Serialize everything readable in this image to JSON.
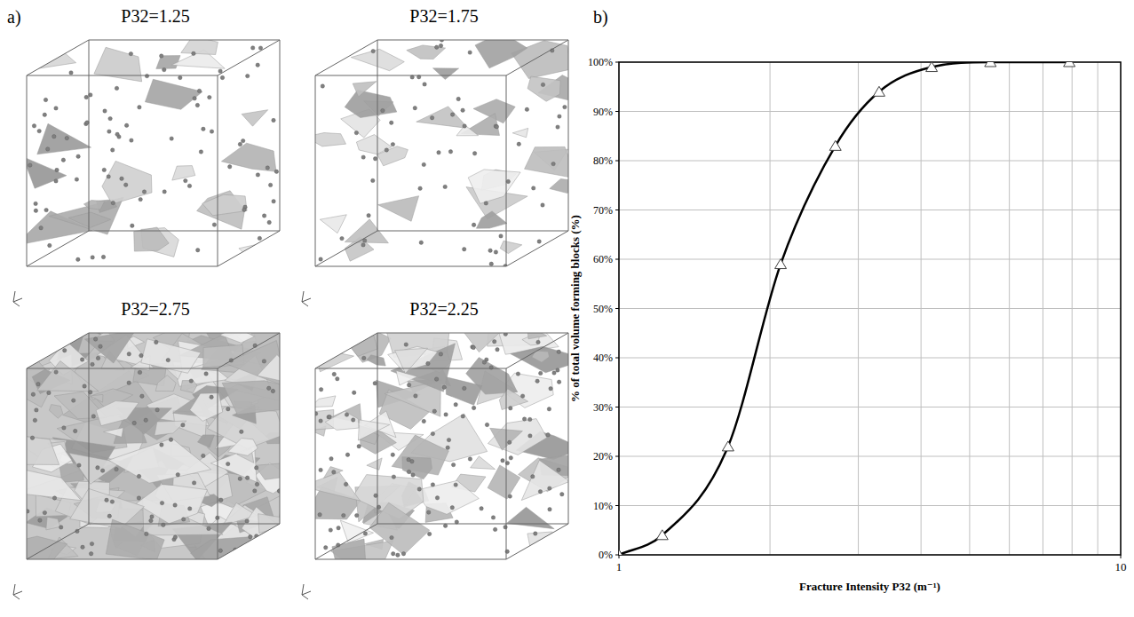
{
  "panels": {
    "a": {
      "letter": "a)",
      "cube_labels": [
        "P32=1.25",
        "P32=1.75",
        "P32=2.75",
        "P32=2.25"
      ]
    },
    "b": {
      "letter": "b)"
    }
  },
  "chart_data": {
    "type": "line",
    "x_label": "Fracture Intensity P32 (m⁻¹)",
    "y_label": "% of total volume forming blocks (%)",
    "x": [
      1,
      1.22,
      1.65,
      2.1,
      2.7,
      3.3,
      4.2,
      5.5,
      7.9
    ],
    "values": [
      0,
      4,
      22,
      59,
      83,
      94,
      99,
      100,
      100
    ],
    "color": "#000000",
    "marker": "triangle",
    "line_style": "solid",
    "log": "x",
    "grid": true,
    "xlim": [
      1,
      10
    ],
    "xticks": [
      1,
      10
    ],
    "ylim": [
      0,
      100
    ],
    "yticks": [
      {
        "value": 0,
        "label": "0%"
      },
      {
        "value": 10,
        "label": "10%"
      },
      {
        "value": 20,
        "label": "20%"
      },
      {
        "value": 30,
        "label": "30%"
      },
      {
        "value": 40,
        "label": "40%"
      },
      {
        "value": 50,
        "label": "50%"
      },
      {
        "value": 60,
        "label": "60%"
      },
      {
        "value": 70,
        "label": "70%"
      },
      {
        "value": 80,
        "label": "80%"
      },
      {
        "value": 90,
        "label": "90%"
      },
      {
        "value": 100,
        "label": "100%"
      }
    ]
  }
}
